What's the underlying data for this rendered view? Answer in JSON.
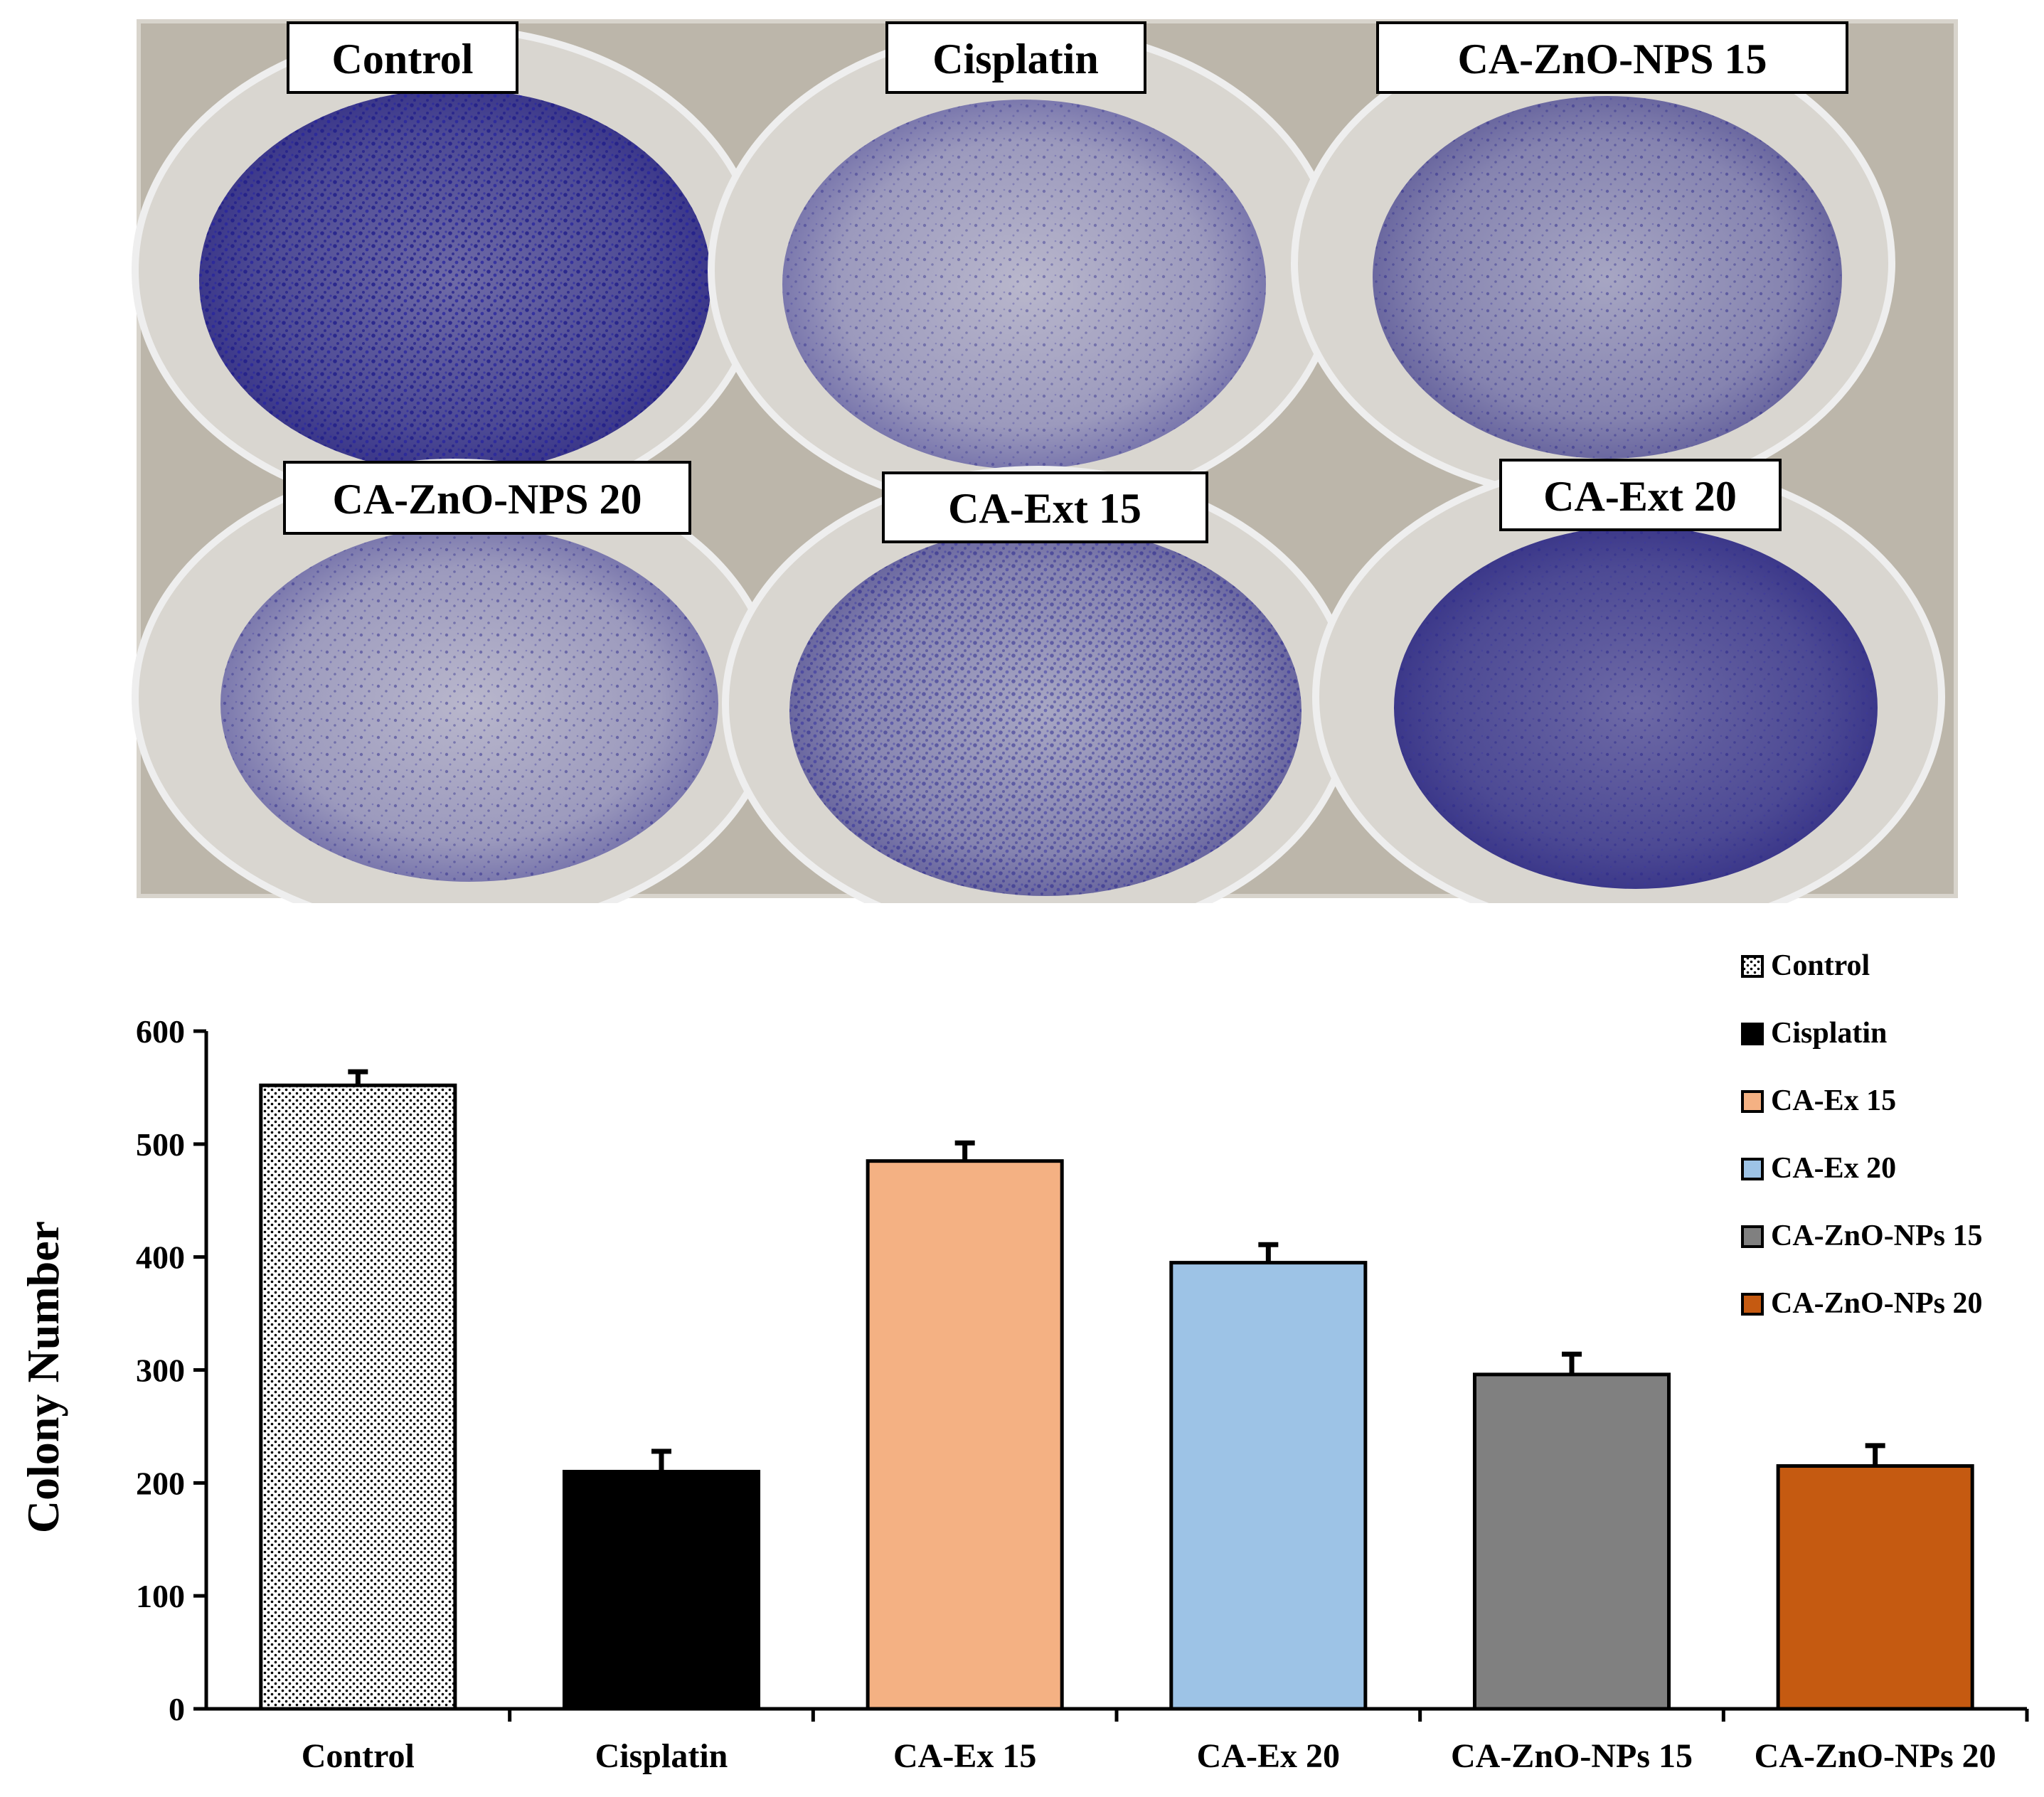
{
  "photo": {
    "well_labels": [
      "Control",
      "Cisplatin",
      "CA-ZnO-NPS 15",
      "CA-ZnO-NPS 20",
      "CA-Ext 15",
      "CA-Ext 20"
    ]
  },
  "chart_data": {
    "type": "bar",
    "categories": [
      "Control",
      "Cisplatin",
      "CA-Ex 15",
      "CA-Ex 20",
      "CA-ZnO-NPs 15",
      "CA-ZnO-NPs 20"
    ],
    "values": [
      552,
      210,
      485,
      395,
      296,
      215
    ],
    "errors": [
      12,
      18,
      16,
      16,
      18,
      18
    ],
    "colors": [
      "#ffffff",
      "#000000",
      "#f4b183",
      "#9dc3e6",
      "#808080",
      "#c55a11"
    ],
    "patterns": [
      "dotted",
      "solid",
      "solid",
      "solid",
      "solid",
      "solid"
    ],
    "legend": [
      "Control",
      "Cisplatin",
      "CA-Ex 15",
      "CA-Ex 20",
      "CA-ZnO-NPs 15",
      "CA-ZnO-NPs 20"
    ],
    "legend_position": "top-right",
    "ylabel": "Colony Number",
    "xlabel": "",
    "ylim": [
      0,
      600
    ],
    "yticks": [
      0,
      100,
      200,
      300,
      400,
      500,
      600
    ],
    "grid": false
  }
}
